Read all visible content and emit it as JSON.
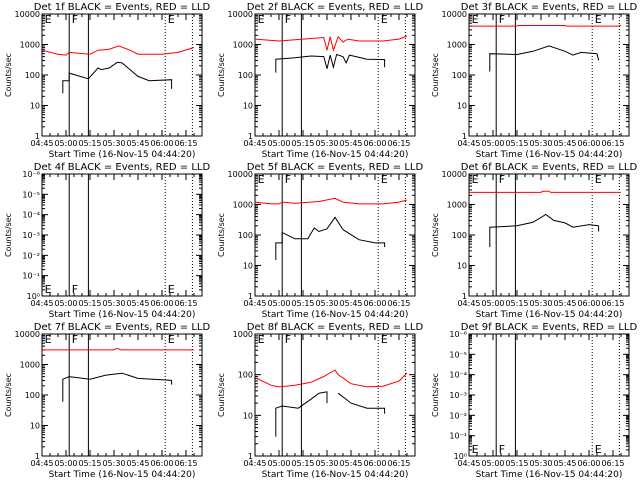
{
  "colors": {
    "events": "#000000",
    "lld": "#ff0000",
    "background": "#ffffff"
  },
  "common": {
    "xlabel": "Start Time (16-Nov-15 04:44:20)",
    "ylabel": "Counts/sec",
    "xticks": [
      "04:45",
      "05:00",
      "05:15",
      "05:30",
      "05:45",
      "06:00",
      "06:15"
    ],
    "xlim": [
      "04:45",
      "06:25"
    ],
    "solid_lines": [
      "05:02",
      "05:14"
    ],
    "dotted_lines": [
      "06:02",
      "06:19"
    ],
    "markers": [
      {
        "time": "04:46",
        "label": "E"
      },
      {
        "time": "05:03",
        "label": "F"
      },
      {
        "time": "06:03",
        "label": "E"
      }
    ]
  },
  "chart_data": [
    {
      "type": "line",
      "title": "Det 1f BLACK = Events, RED = LLD",
      "yscale": "log",
      "ylim": [
        1,
        10000
      ],
      "yticks": [
        "1",
        "10",
        "100",
        "1000",
        "10000"
      ],
      "series": [
        {
          "color": "#ff0000",
          "points": [
            [
              "04:45",
              650
            ],
            [
              "04:55",
              480
            ],
            [
              "05:00",
              450
            ],
            [
              "05:02",
              550
            ],
            [
              "05:15",
              480
            ],
            [
              "05:20",
              650
            ],
            [
              "05:27",
              700
            ],
            [
              "05:33",
              900
            ],
            [
              "05:40",
              650
            ],
            [
              "05:45",
              480
            ],
            [
              "06:00",
              480
            ],
            [
              "06:10",
              550
            ],
            [
              "06:20",
              800
            ]
          ]
        },
        {
          "color": "#000000",
          "points": [
            [
              "04:58",
              25
            ],
            [
              "04:58",
              65
            ],
            [
              "05:02",
              65
            ],
            [
              "05:02",
              115
            ],
            [
              "05:14",
              75
            ],
            [
              "05:20",
              170
            ],
            [
              "05:22",
              150
            ],
            [
              "05:27",
              170
            ],
            [
              "05:32",
              260
            ],
            [
              "05:35",
              250
            ],
            [
              "05:45",
              90
            ],
            [
              "05:52",
              65
            ],
            [
              "06:06",
              70
            ],
            [
              "06:06",
              35
            ]
          ]
        }
      ]
    },
    {
      "type": "line",
      "title": "Det 2f BLACK = Events, RED = LLD",
      "yscale": "log",
      "ylim": [
        1,
        10000
      ],
      "yticks": [
        "1",
        "10",
        "100",
        "1000",
        "10000"
      ],
      "series": [
        {
          "color": "#ff0000",
          "points": [
            [
              "04:45",
              1500
            ],
            [
              "05:00",
              1300
            ],
            [
              "05:15",
              1500
            ],
            [
              "05:28",
              1700
            ],
            [
              "05:30",
              650
            ],
            [
              "05:32",
              1800
            ],
            [
              "05:34",
              650
            ],
            [
              "05:37",
              1800
            ],
            [
              "05:40",
              1200
            ],
            [
              "05:43",
              1500
            ],
            [
              "05:50",
              1300
            ],
            [
              "06:05",
              1300
            ],
            [
              "06:15",
              1500
            ],
            [
              "06:20",
              1900
            ]
          ]
        },
        {
          "color": "#000000",
          "points": [
            [
              "04:58",
              120
            ],
            [
              "04:58",
              330
            ],
            [
              "05:10",
              370
            ],
            [
              "05:20",
              420
            ],
            [
              "05:28",
              400
            ],
            [
              "05:30",
              160
            ],
            [
              "05:32",
              450
            ],
            [
              "05:34",
              180
            ],
            [
              "05:36",
              470
            ],
            [
              "05:40",
              400
            ],
            [
              "05:42",
              250
            ],
            [
              "05:44",
              450
            ],
            [
              "05:55",
              330
            ],
            [
              "06:06",
              320
            ],
            [
              "06:06",
              180
            ]
          ]
        }
      ]
    },
    {
      "type": "line",
      "title": "Det 3f BLACK = Events, RED = LLD",
      "yscale": "log",
      "ylim": [
        1,
        10000
      ],
      "yticks": [
        "1",
        "10",
        "100",
        "1000",
        "10000"
      ],
      "series": [
        {
          "color": "#ff0000",
          "points": [
            [
              "04:45",
              4000
            ],
            [
              "05:15",
              4000
            ],
            [
              "05:16",
              4200
            ],
            [
              "05:45",
              4200
            ],
            [
              "05:46",
              4000
            ],
            [
              "06:18",
              4000
            ],
            [
              "06:20",
              4300
            ]
          ]
        },
        {
          "color": "#000000",
          "points": [
            [
              "04:58",
              130
            ],
            [
              "04:58",
              500
            ],
            [
              "05:15",
              470
            ],
            [
              "05:25",
              600
            ],
            [
              "05:35",
              900
            ],
            [
              "05:45",
              600
            ],
            [
              "05:50",
              450
            ],
            [
              "05:55",
              550
            ],
            [
              "06:05",
              500
            ],
            [
              "06:06",
              300
            ]
          ]
        }
      ]
    },
    {
      "type": "line",
      "title": "Det 4f BLACK = Events, RED = LLD",
      "yscale": "log",
      "empty": true,
      "yticks": [
        "10⁰",
        "10⁻¹",
        "10⁻²",
        "10⁻³",
        "10⁻⁴",
        "10⁻⁵",
        "10⁻⁶"
      ],
      "series": []
    },
    {
      "type": "line",
      "title": "Det 5f BLACK = Events, RED = LLD",
      "yscale": "log",
      "ylim": [
        1,
        10000
      ],
      "yticks": [
        "1",
        "10",
        "100",
        "1000",
        "10000"
      ],
      "series": [
        {
          "color": "#ff0000",
          "points": [
            [
              "04:45",
              1200
            ],
            [
              "04:55",
              1050
            ],
            [
              "05:00",
              1050
            ],
            [
              "05:02",
              1200
            ],
            [
              "05:10",
              1100
            ],
            [
              "05:25",
              1250
            ],
            [
              "05:35",
              1600
            ],
            [
              "05:40",
              1200
            ],
            [
              "05:50",
              1050
            ],
            [
              "06:05",
              1050
            ],
            [
              "06:15",
              1200
            ],
            [
              "06:20",
              1400
            ]
          ]
        },
        {
          "color": "#000000",
          "points": [
            [
              "04:58",
              15
            ],
            [
              "04:58",
              55
            ],
            [
              "05:02",
              55
            ],
            [
              "05:02",
              120
            ],
            [
              "05:10",
              75
            ],
            [
              "05:18",
              75
            ],
            [
              "05:22",
              170
            ],
            [
              "05:25",
              130
            ],
            [
              "05:30",
              160
            ],
            [
              "05:35",
              380
            ],
            [
              "05:40",
              150
            ],
            [
              "05:50",
              70
            ],
            [
              "06:00",
              55
            ],
            [
              "06:06",
              55
            ],
            [
              "06:06",
              40
            ]
          ]
        }
      ]
    },
    {
      "type": "line",
      "title": "Det 6f BLACK = Events, RED = LLD",
      "yscale": "log",
      "ylim": [
        1,
        10000
      ],
      "yticks": [
        "1",
        "10",
        "100",
        "1000",
        "10000"
      ],
      "series": [
        {
          "color": "#ff0000",
          "points": [
            [
              "04:45",
              2500
            ],
            [
              "05:30",
              2500
            ],
            [
              "05:31",
              2700
            ],
            [
              "05:35",
              2700
            ],
            [
              "05:36",
              2500
            ],
            [
              "06:20",
              2500
            ]
          ]
        },
        {
          "color": "#000000",
          "points": [
            [
              "04:58",
              40
            ],
            [
              "04:58",
              180
            ],
            [
              "05:15",
              200
            ],
            [
              "05:25",
              260
            ],
            [
              "05:33",
              470
            ],
            [
              "05:38",
              300
            ],
            [
              "05:45",
              250
            ],
            [
              "05:50",
              180
            ],
            [
              "06:00",
              220
            ],
            [
              "06:06",
              200
            ],
            [
              "06:06",
              130
            ]
          ]
        }
      ]
    },
    {
      "type": "line",
      "title": "Det 7f BLACK = Events, RED = LLD",
      "yscale": "log",
      "ylim": [
        1,
        10000
      ],
      "yticks": [
        "1",
        "10",
        "100",
        "1000",
        "10000"
      ],
      "series": [
        {
          "color": "#ff0000",
          "points": [
            [
              "04:45",
              3000
            ],
            [
              "05:30",
              3000
            ],
            [
              "05:31",
              3300
            ],
            [
              "05:33",
              3300
            ],
            [
              "05:34",
              3000
            ],
            [
              "06:20",
              3000
            ]
          ]
        },
        {
          "color": "#000000",
          "points": [
            [
              "04:58",
              60
            ],
            [
              "04:58",
              330
            ],
            [
              "05:02",
              400
            ],
            [
              "05:15",
              330
            ],
            [
              "05:25",
              450
            ],
            [
              "05:35",
              520
            ],
            [
              "05:45",
              350
            ],
            [
              "06:06",
              300
            ],
            [
              "06:06",
              220
            ]
          ]
        }
      ]
    },
    {
      "type": "line",
      "title": "Det 8f BLACK = Events, RED = LLD",
      "yscale": "log",
      "ylim": [
        1,
        1000
      ],
      "yticks": [
        "1",
        "10",
        "100",
        "1000"
      ],
      "series": [
        {
          "color": "#ff0000",
          "points": [
            [
              "04:45",
              85
            ],
            [
              "04:55",
              55
            ],
            [
              "05:00",
              50
            ],
            [
              "05:10",
              55
            ],
            [
              "05:20",
              65
            ],
            [
              "05:28",
              90
            ],
            [
              "05:35",
              130
            ],
            [
              "05:37",
              100
            ],
            [
              "05:45",
              60
            ],
            [
              "05:55",
              50
            ],
            [
              "06:05",
              52
            ],
            [
              "06:15",
              70
            ],
            [
              "06:20",
              110
            ]
          ]
        },
        {
          "color": "#000000",
          "points": [
            [
              "04:58",
              3
            ],
            [
              "04:58",
              15
            ],
            [
              "05:02",
              17
            ],
            [
              "05:12",
              15
            ],
            [
              "05:20",
              25
            ],
            [
              "05:25",
              35
            ],
            [
              "05:30",
              38
            ],
            [
              "05:30",
              20
            ],
            null,
            [
              "05:37",
              35
            ],
            [
              "05:45",
              20
            ],
            [
              "05:55",
              15
            ],
            [
              "06:06",
              15
            ],
            [
              "06:06",
              11
            ]
          ]
        }
      ]
    },
    {
      "type": "line",
      "title": "Det 9f BLACK = Events, RED = LLD",
      "yscale": "log",
      "empty": true,
      "yticks": [
        "10⁰",
        "10⁻¹",
        "10⁻²",
        "10⁻³",
        "10⁻⁴",
        "10⁻⁵",
        "10⁻⁶"
      ],
      "series": []
    }
  ]
}
